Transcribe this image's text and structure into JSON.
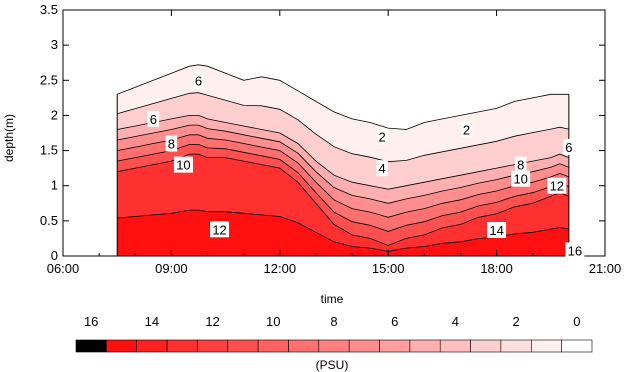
{
  "chart_data": {
    "type": "contour",
    "title": "",
    "xlabel": "time",
    "ylabel": "depth(m)",
    "xlim": [
      "06:00",
      "21:00"
    ],
    "ylim": [
      0,
      3.5
    ],
    "x_ticks": [
      "06:00",
      "09:00",
      "12:00",
      "15:00",
      "18:00",
      "21:00"
    ],
    "y_ticks": [
      "0",
      "0.5",
      "1",
      "1.5",
      "2",
      "2.5",
      "3",
      "3.5"
    ],
    "data_hours": [
      7.5,
      8.0,
      8.5,
      9.0,
      9.5,
      9.75,
      10.0,
      10.5,
      11.0,
      11.5,
      12.0,
      12.5,
      13.0,
      13.5,
      14.0,
      14.5,
      15.0,
      15.5,
      16.0,
      16.5,
      17.0,
      17.5,
      18.0,
      18.5,
      19.0,
      19.5,
      19.75,
      20.0
    ],
    "surface_depth": [
      2.3,
      2.4,
      2.5,
      2.6,
      2.7,
      2.72,
      2.7,
      2.6,
      2.5,
      2.55,
      2.5,
      2.35,
      2.2,
      2.05,
      1.95,
      1.9,
      1.82,
      1.8,
      1.9,
      1.95,
      2.0,
      2.05,
      2.1,
      2.2,
      2.25,
      2.3,
      2.3,
      2.3
    ],
    "salinity_profiles_top_to_bottom": {
      "fresh_layer_base_depth": [
        1.8,
        1.85,
        1.9,
        1.95,
        2.0,
        2.0,
        1.95,
        1.9,
        1.85,
        1.8,
        1.75,
        1.6,
        1.35,
        1.15,
        1.05,
        1.0,
        0.95,
        1.0,
        1.05,
        1.1,
        1.15,
        1.2,
        1.25,
        1.3,
        1.35,
        1.4,
        1.45,
        1.4
      ],
      "halocline_thickness": [
        0.6,
        0.6,
        0.6,
        0.6,
        0.55,
        0.55,
        0.55,
        0.5,
        0.5,
        0.5,
        0.5,
        0.55,
        0.6,
        0.7,
        0.75,
        0.75,
        0.8,
        0.75,
        0.75,
        0.7,
        0.7,
        0.65,
        0.65,
        0.6,
        0.6,
        0.55,
        0.55,
        0.55
      ]
    },
    "contour_levels": [
      2,
      4,
      6,
      8,
      10,
      12,
      14,
      16
    ],
    "contour_labels": [
      {
        "text": "6",
        "time": "09:45",
        "depth": 2.5
      },
      {
        "text": "6",
        "time": "08:30",
        "depth": 1.95
      },
      {
        "text": "8",
        "time": "09:00",
        "depth": 1.6
      },
      {
        "text": "10",
        "time": "09:20",
        "depth": 1.3
      },
      {
        "text": "12",
        "time": "10:20",
        "depth": 0.38
      },
      {
        "text": "2",
        "time": "14:50",
        "depth": 1.7
      },
      {
        "text": "2",
        "time": "17:10",
        "depth": 1.8
      },
      {
        "text": "4",
        "time": "14:50",
        "depth": 1.25
      },
      {
        "text": "8",
        "time": "18:40",
        "depth": 1.3
      },
      {
        "text": "10",
        "time": "18:40",
        "depth": 1.1
      },
      {
        "text": "12",
        "time": "19:40",
        "depth": 1.0
      },
      {
        "text": "14",
        "time": "18:00",
        "depth": 0.37
      },
      {
        "text": "6",
        "time": "20:00",
        "depth": 1.55
      },
      {
        "text": "16",
        "time": "20:10",
        "depth": 0.08
      }
    ],
    "colorbar": {
      "labels": [
        "16",
        "14",
        "12",
        "10",
        "8",
        "6",
        "4",
        "2",
        "0"
      ],
      "unit": "(PSU)",
      "color_high": "#ff0000",
      "color_low": "#ffffff",
      "color_max": "#000000"
    },
    "line_color": "#000000"
  }
}
